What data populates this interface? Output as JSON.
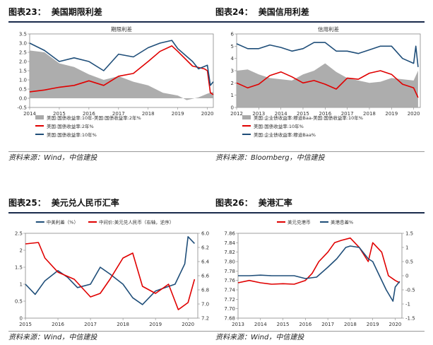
{
  "charts": [
    {
      "fig_label": "图表23：",
      "fig_title": "美国期限利差",
      "source": "资料来源：Wind，中信建投",
      "chart_data": {
        "type": "area",
        "title": "期限利差",
        "xlim": [
          2014,
          2020.2
        ],
        "ylim": [
          -0.5,
          3.5
        ],
        "xticks": [
          "2014",
          "2015",
          "2016",
          "2017",
          "2018",
          "2019",
          "2020"
        ],
        "yticks": [
          "-0.5",
          "0.0",
          "0.5",
          "1.0",
          "1.5",
          "2.0",
          "2.5",
          "3.0",
          "3.5"
        ],
        "legend_position": "bottom",
        "series": [
          {
            "name": "美国:国债收益率:10年-美国:国债收益率:2年%",
            "kind": "area",
            "color": "#a9a9a9",
            "x": [
              2014,
              2014.5,
              2015,
              2015.5,
              2016,
              2016.5,
              2017,
              2017.5,
              2018,
              2018.5,
              2019,
              2019.3,
              2019.7,
              2020,
              2020.2
            ],
            "y": [
              2.6,
              2.5,
              1.9,
              1.7,
              1.3,
              1.0,
              1.2,
              0.9,
              0.7,
              0.3,
              0.15,
              -0.1,
              0.05,
              0.25,
              0.35
            ]
          },
          {
            "name": "美国:国债收益率:2年%",
            "kind": "line",
            "color": "#e00000",
            "x": [
              2014,
              2014.5,
              2015,
              2015.5,
              2016,
              2016.5,
              2017,
              2017.5,
              2018,
              2018.4,
              2018.8,
              2019,
              2019.5,
              2019.9,
              2020,
              2020.1,
              2020.2
            ],
            "y": [
              0.35,
              0.45,
              0.6,
              0.7,
              0.95,
              0.7,
              1.2,
              1.35,
              2.0,
              2.55,
              2.85,
              2.55,
              1.75,
              1.6,
              1.5,
              0.3,
              0.2
            ]
          },
          {
            "name": "美国:国债收益率:10年%",
            "kind": "line",
            "color": "#1f4e79",
            "x": [
              2014,
              2014.5,
              2015,
              2015.5,
              2016,
              2016.5,
              2017,
              2017.5,
              2018,
              2018.4,
              2018.8,
              2019,
              2019.5,
              2019.7,
              2020,
              2020.1,
              2020.2
            ],
            "y": [
              3.0,
              2.6,
              2.0,
              2.2,
              2.0,
              1.5,
              2.4,
              2.25,
              2.75,
              3.0,
              3.15,
              2.7,
              2.0,
              1.6,
              1.8,
              0.7,
              0.9
            ]
          }
        ]
      }
    },
    {
      "fig_label": "图表24：",
      "fig_title": "美国信用利差",
      "source": "资料来源：Bloomberg，中信建投",
      "chart_data": {
        "type": "area",
        "title": "信用利差",
        "xlim": [
          2012,
          2020.3
        ],
        "ylim": [
          0,
          6
        ],
        "xticks": [
          "2012",
          "2013",
          "2014",
          "2015",
          "2016",
          "2017",
          "2018",
          "2019",
          "2020"
        ],
        "yticks": [
          "0",
          "1",
          "2",
          "3",
          "4",
          "5",
          "6"
        ],
        "legend_position": "bottom",
        "series": [
          {
            "name": "美国:企业债收益率:穆迪Baa-美国:国债收益率:10年%",
            "kind": "area",
            "color": "#a9a9a9",
            "x": [
              2012,
              2012.5,
              2013,
              2013.5,
              2014,
              2014.5,
              2015,
              2015.5,
              2016,
              2016.5,
              2017,
              2017.5,
              2018,
              2018.5,
              2019,
              2019.5,
              2020,
              2020.2
            ],
            "y": [
              3.0,
              3.1,
              2.7,
              2.4,
              2.3,
              2.2,
              2.7,
              3.0,
              3.6,
              2.9,
              2.4,
              2.2,
              2.0,
              2.1,
              2.4,
              2.3,
              2.2,
              3.0
            ]
          },
          {
            "name": "美国:国债收益率:10年%",
            "kind": "line",
            "color": "#e00000",
            "x": [
              2012,
              2012.5,
              2013,
              2013.5,
              2014,
              2014.5,
              2015,
              2015.5,
              2016,
              2016.5,
              2017,
              2017.5,
              2018,
              2018.5,
              2019,
              2019.5,
              2020,
              2020.2
            ],
            "y": [
              2.0,
              1.6,
              1.9,
              2.6,
              2.9,
              2.5,
              2.0,
              2.2,
              1.9,
              1.5,
              2.4,
              2.3,
              2.8,
              3.0,
              2.7,
              1.9,
              1.6,
              0.8
            ]
          },
          {
            "name": "美国:企业债收益率:穆迪Baa%",
            "kind": "line",
            "color": "#1f4e79",
            "x": [
              2012,
              2012.5,
              2013,
              2013.5,
              2014,
              2014.5,
              2015,
              2015.5,
              2016,
              2016.5,
              2017,
              2017.5,
              2018,
              2018.5,
              2019,
              2019.5,
              2020,
              2020.1,
              2020.2
            ],
            "y": [
              5.2,
              4.8,
              4.8,
              5.1,
              4.9,
              4.6,
              4.8,
              5.3,
              5.3,
              4.6,
              4.6,
              4.4,
              4.7,
              5.0,
              5.0,
              4.0,
              3.6,
              5.0,
              3.3
            ]
          }
        ]
      }
    },
    {
      "fig_label": "图表25：",
      "fig_title": "美元兑人民币汇率",
      "source": "资料来源：Wind，中信建投",
      "chart_data": {
        "type": "line",
        "title": "",
        "xlim": [
          2015,
          2020.3
        ],
        "ylim": [
          0,
          2.5
        ],
        "y2lim": [
          6.0,
          7.2
        ],
        "y2_inverted": true,
        "xticks": [
          "2015",
          "2016",
          "2017",
          "2018",
          "2019",
          "2020"
        ],
        "yticks": [
          "0",
          "0.5",
          "1",
          "1.5",
          "2",
          "2.5"
        ],
        "y2ticks": [
          "6.0",
          "6.2",
          "6.4",
          "6.6",
          "6.8",
          "7.0",
          "7.2"
        ],
        "legend_position": "top",
        "series": [
          {
            "name": "中美利差（%）",
            "axis": "left",
            "color": "#1f4e79",
            "x": [
              2015,
              2015.3,
              2015.6,
              2016,
              2016.3,
              2016.6,
              2017,
              2017.3,
              2017.6,
              2018,
              2018.3,
              2018.6,
              2019,
              2019.3,
              2019.6,
              2019.9,
              2020,
              2020.2
            ],
            "y": [
              1.0,
              0.7,
              1.1,
              1.4,
              1.2,
              0.9,
              1.0,
              1.5,
              1.3,
              1.0,
              0.6,
              0.4,
              0.8,
              0.9,
              1.0,
              1.6,
              2.4,
              2.2
            ]
          },
          {
            "name": "中间价:美元兑人民币（右轴，逆序）",
            "axis": "right",
            "color": "#e00000",
            "x": [
              2015,
              2015.4,
              2015.6,
              2016,
              2016.5,
              2017,
              2017.3,
              2017.6,
              2018,
              2018.3,
              2018.6,
              2019,
              2019.4,
              2019.7,
              2020,
              2020.2
            ],
            "y": [
              6.15,
              6.13,
              6.35,
              6.55,
              6.65,
              6.9,
              6.85,
              6.65,
              6.35,
              6.28,
              6.75,
              6.85,
              6.72,
              7.08,
              6.98,
              6.65
            ]
          }
        ]
      }
    },
    {
      "fig_label": "图表26：",
      "fig_title": "美港汇率",
      "source": "资料来源：Wind，中信建投",
      "chart_data": {
        "type": "line",
        "title": "",
        "xlim": [
          2013,
          2020.3
        ],
        "ylim": [
          7.68,
          7.86
        ],
        "y2lim": [
          -1.5,
          1.5
        ],
        "xticks": [
          "2013",
          "2014",
          "2015",
          "2016",
          "2017",
          "2018",
          "2019",
          "2020"
        ],
        "yticks": [
          "7.68",
          "7.70",
          "7.72",
          "7.74",
          "7.76",
          "7.78",
          "7.80",
          "7.82",
          "7.84",
          "7.86"
        ],
        "y2ticks": [
          "-1.5",
          "-1",
          "-0.5",
          "0",
          "0.5",
          "1",
          "1.5"
        ],
        "legend_position": "top",
        "series": [
          {
            "name": "美元兑港币",
            "axis": "left",
            "color": "#e00000",
            "x": [
              2013,
              2013.5,
              2014,
              2014.5,
              2015,
              2015.5,
              2016,
              2016.3,
              2016.6,
              2017,
              2017.3,
              2017.6,
              2018,
              2018.4,
              2018.8,
              2019,
              2019.4,
              2019.7,
              2020,
              2020.2
            ],
            "y": [
              7.755,
              7.76,
              7.755,
              7.752,
              7.753,
              7.752,
              7.76,
              7.775,
              7.8,
              7.82,
              7.84,
              7.845,
              7.85,
              7.83,
              7.8,
              7.84,
              7.82,
              7.77,
              7.76,
              7.755
            ]
          },
          {
            "name": "美港息差%",
            "axis": "right",
            "color": "#1f4e79",
            "x": [
              2013,
              2013.5,
              2014,
              2014.5,
              2015,
              2015.5,
              2016,
              2016.5,
              2017,
              2017.4,
              2017.8,
              2018,
              2018.4,
              2018.8,
              2019,
              2019.3,
              2019.6,
              2019.9,
              2020,
              2020.2
            ],
            "y": [
              0.0,
              0.0,
              0.02,
              0.0,
              0.0,
              0.0,
              -0.1,
              -0.05,
              0.3,
              0.6,
              1.0,
              1.05,
              1.0,
              0.6,
              0.5,
              0.0,
              -0.5,
              -0.9,
              -0.4,
              -0.2
            ]
          }
        ]
      }
    }
  ]
}
